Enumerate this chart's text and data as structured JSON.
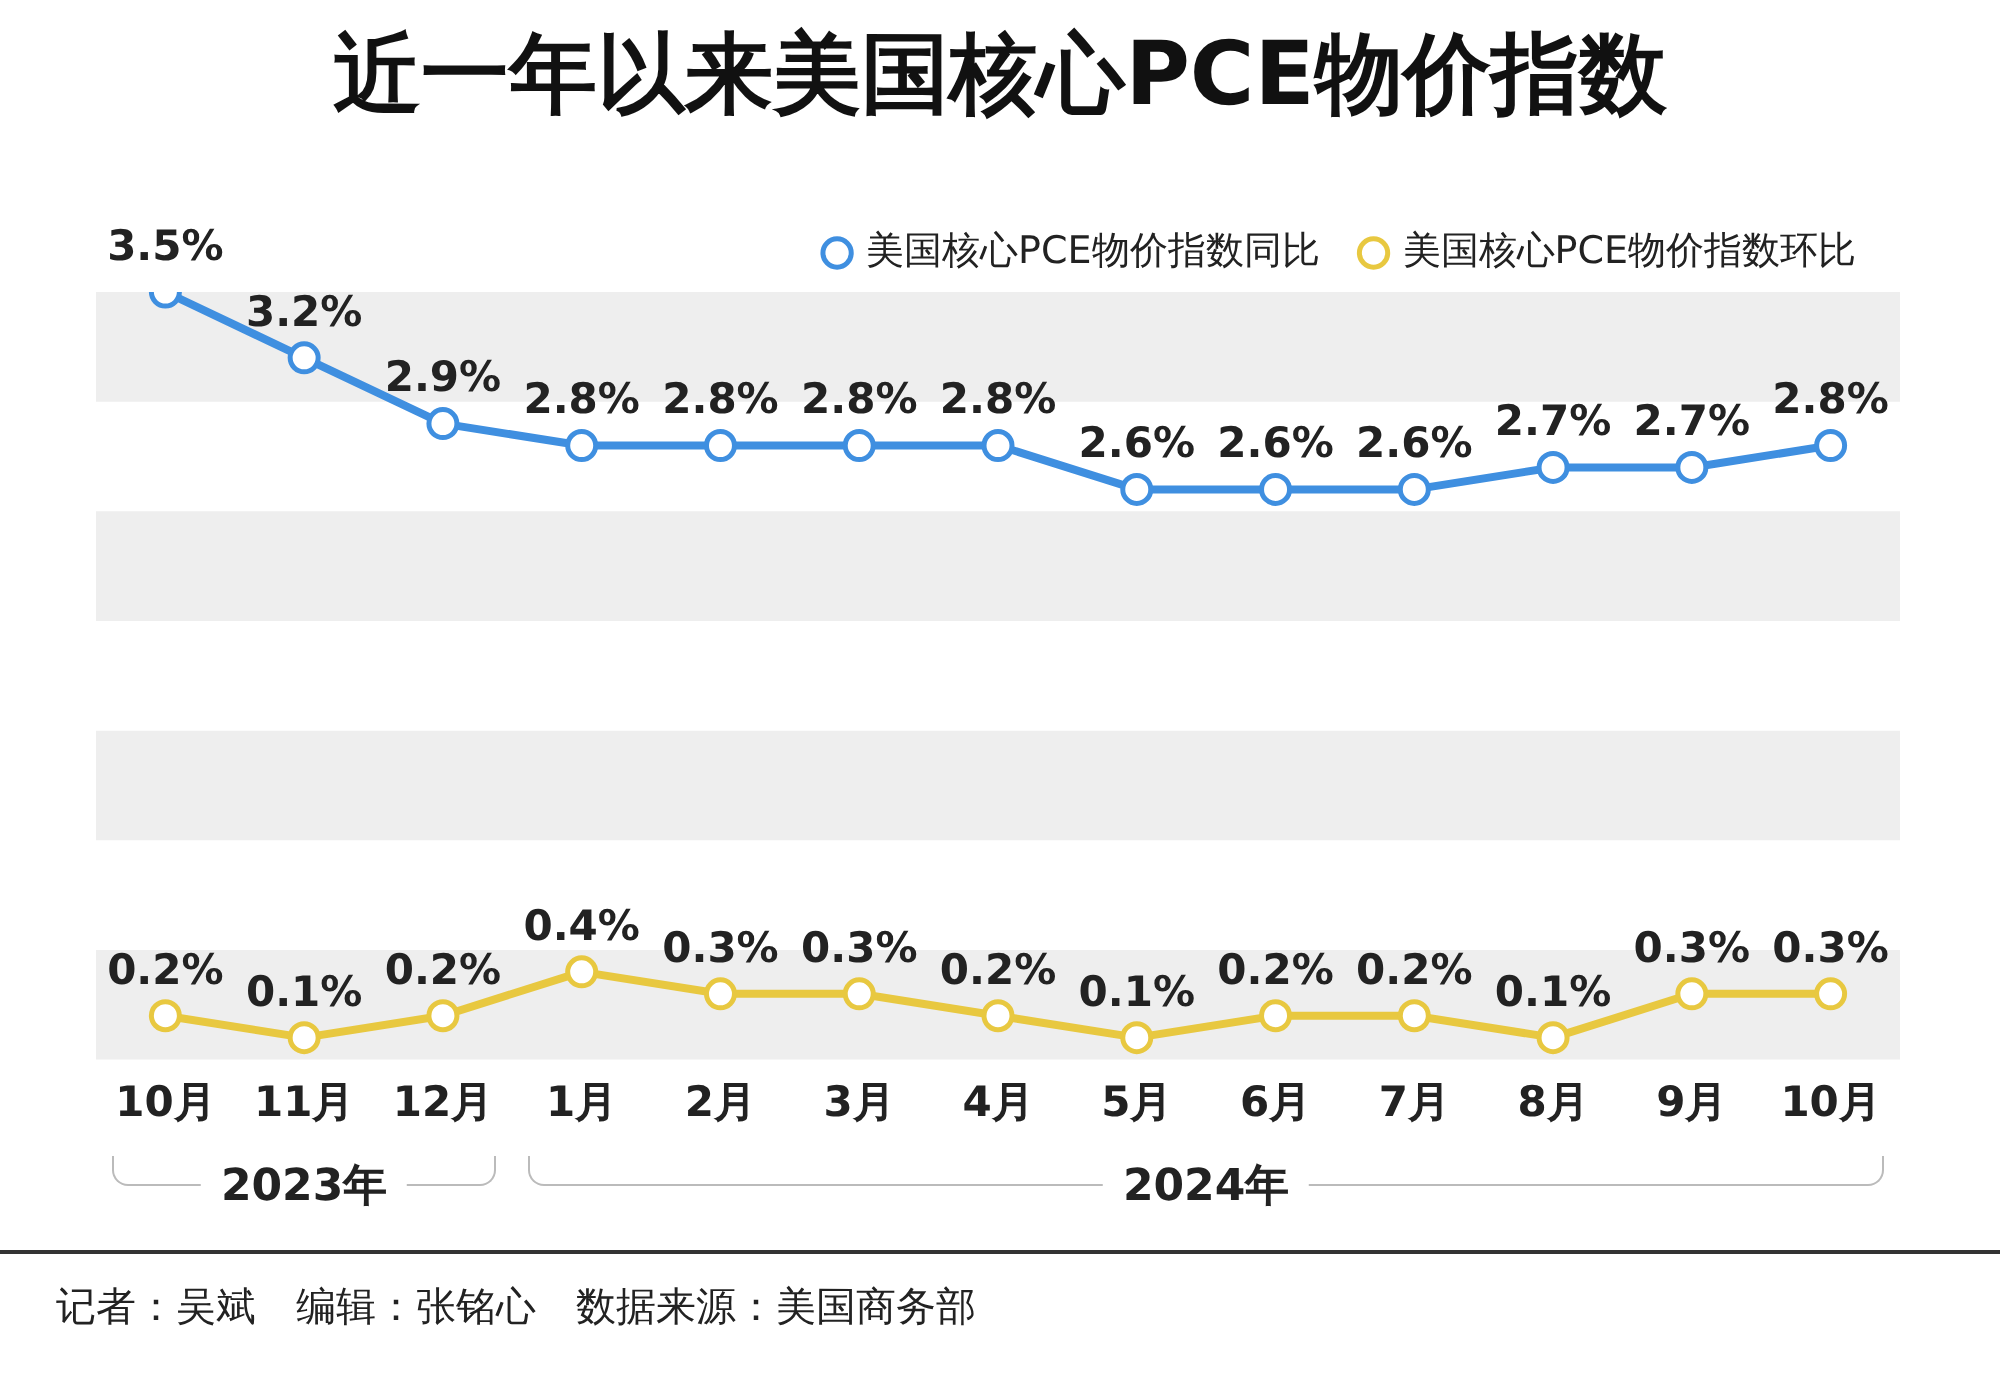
{
  "chart_data": {
    "type": "line",
    "title": "近一年以来美国核心PCE物价指数",
    "categories": [
      "10月",
      "11月",
      "12月",
      "1月",
      "2月",
      "3月",
      "4月",
      "5月",
      "6月",
      "7月",
      "8月",
      "9月",
      "10月"
    ],
    "series": [
      {
        "name": "美国核心PCE物价指数同比",
        "color": "#3f8fe0",
        "values": [
          3.5,
          3.2,
          2.9,
          2.8,
          2.8,
          2.8,
          2.8,
          2.6,
          2.6,
          2.6,
          2.7,
          2.7,
          2.8
        ],
        "value_labels": [
          "3.5%",
          "3.2%",
          "2.9%",
          "2.8%",
          "2.8%",
          "2.8%",
          "2.8%",
          "2.6%",
          "2.6%",
          "2.6%",
          "2.7%",
          "2.7%",
          "2.8%"
        ]
      },
      {
        "name": "美国核心PCE物价指数环比",
        "color": "#e8c840",
        "values": [
          0.2,
          0.1,
          0.2,
          0.4,
          0.3,
          0.3,
          0.2,
          0.1,
          0.2,
          0.2,
          0.1,
          0.3,
          0.3
        ],
        "value_labels": [
          "0.2%",
          "0.1%",
          "0.2%",
          "0.4%",
          "0.3%",
          "0.3%",
          "0.2%",
          "0.1%",
          "0.2%",
          "0.2%",
          "0.1%",
          "0.3%",
          "0.3%"
        ]
      }
    ],
    "bands": [
      {
        "axis": "y",
        "from": 0,
        "to": 0.5,
        "color": "#eeeeee"
      },
      {
        "axis": "y",
        "from": 1,
        "to": 1.5,
        "color": "#eeeeee"
      },
      {
        "axis": "y",
        "from": 2,
        "to": 2.5,
        "color": "#eeeeee"
      },
      {
        "axis": "y",
        "from": 3,
        "to": 3.5,
        "color": "#eeeeee"
      }
    ],
    "tick_labels": "x",
    "grid": false,
    "legend": "top right",
    "marker": "circle",
    "line_style": "solid",
    "annotations": [
      "2023年",
      "2024年",
      "记者：吴斌　编辑：张铭心　数据来源：美国商务部"
    ]
  }
}
